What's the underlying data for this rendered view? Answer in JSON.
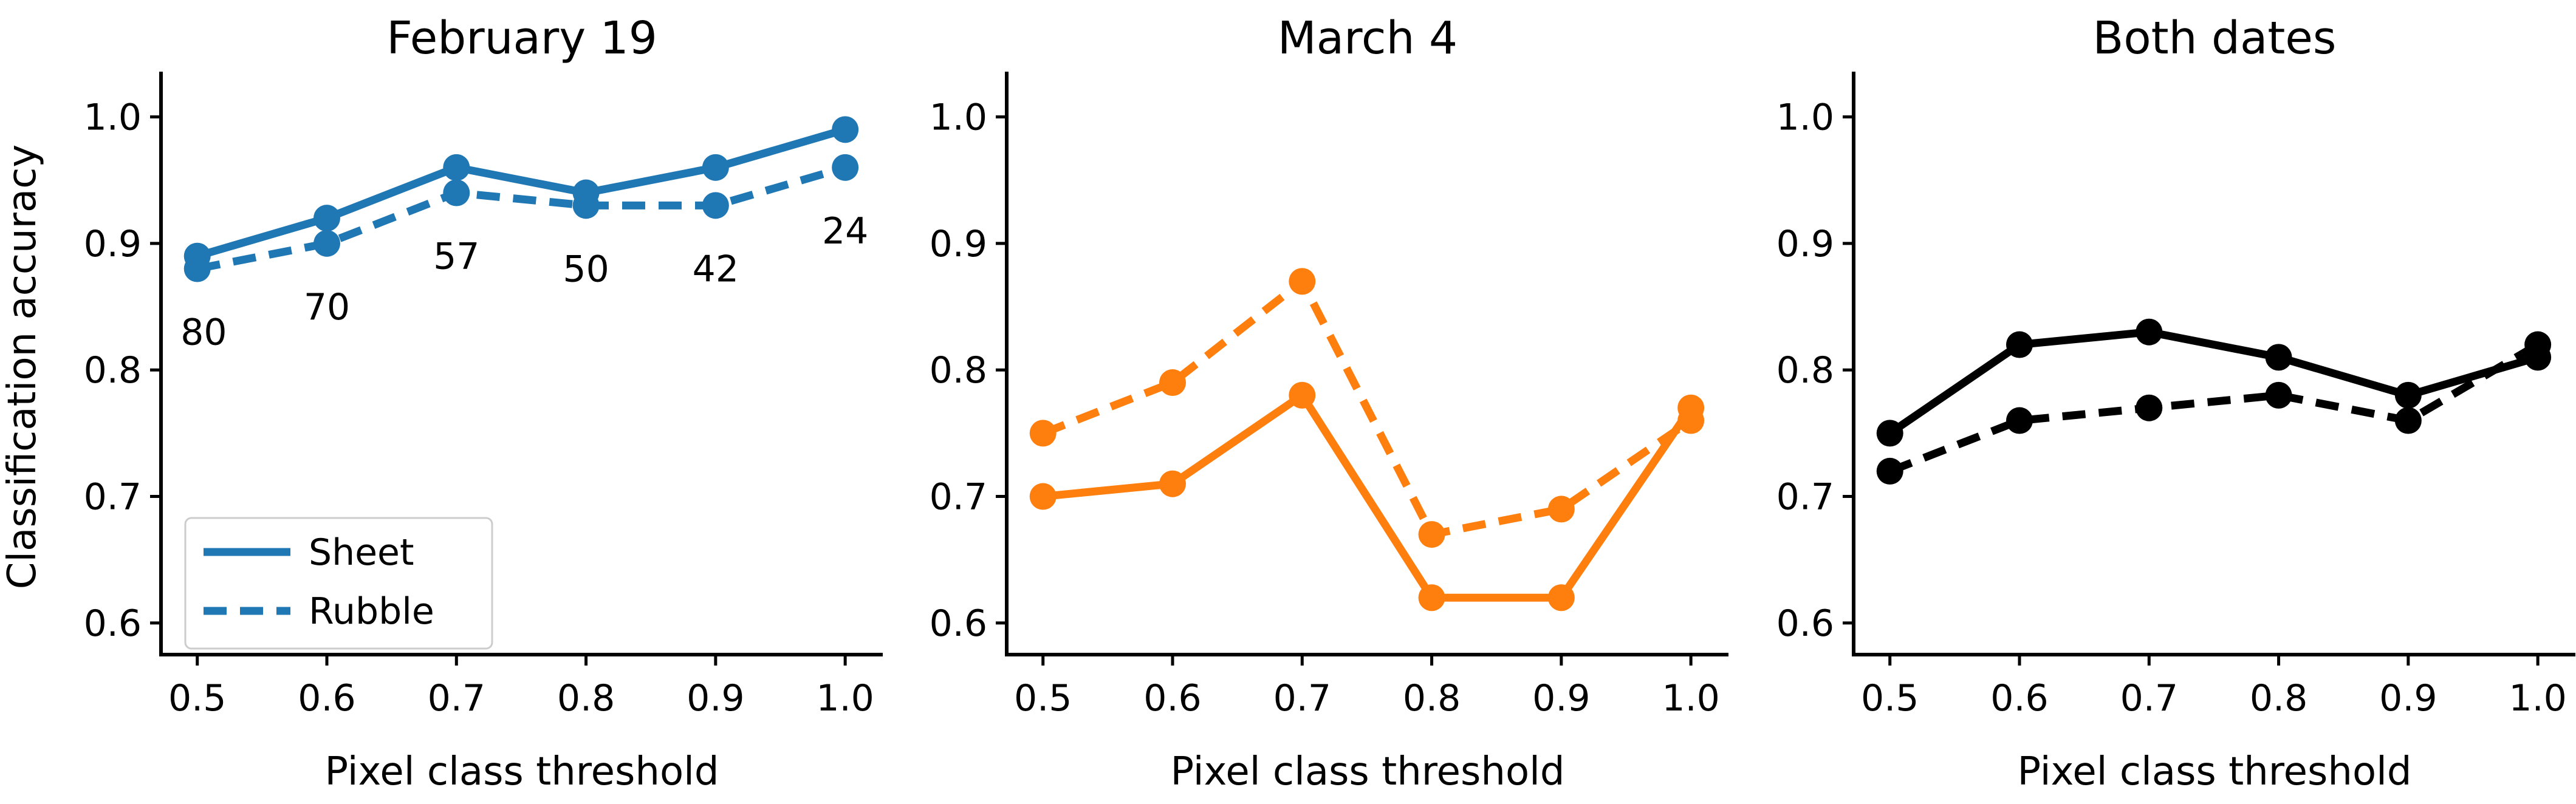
{
  "figure": {
    "background": "#ffffff",
    "xlabel": "Pixel class threshold",
    "ylabel": "Classification accuracy",
    "legend": {
      "entries": [
        "Sheet",
        "Rubble"
      ],
      "position": "lower left"
    }
  },
  "chart_data": [
    {
      "type": "line",
      "title": "February 19",
      "xlabel": "Pixel class threshold",
      "ylabel": "Classification accuracy",
      "x": [
        0.5,
        0.6,
        0.7,
        0.8,
        0.9,
        1.0
      ],
      "series": [
        {
          "name": "Sheet",
          "linestyle": "solid",
          "color": "#1f77b4",
          "values": [
            0.89,
            0.92,
            0.96,
            0.94,
            0.96,
            0.99
          ]
        },
        {
          "name": "Rubble",
          "linestyle": "dashed",
          "color": "#1f77b4",
          "values": [
            0.88,
            0.9,
            0.94,
            0.93,
            0.93,
            0.96
          ]
        }
      ],
      "annotations": [
        {
          "label": "80",
          "x": 0.505,
          "y": 0.83
        },
        {
          "label": "70",
          "x": 0.6,
          "y": 0.85
        },
        {
          "label": "57",
          "x": 0.7,
          "y": 0.89
        },
        {
          "label": "50",
          "x": 0.8,
          "y": 0.88
        },
        {
          "label": "42",
          "x": 0.9,
          "y": 0.88
        },
        {
          "label": "24",
          "x": 1.0,
          "y": 0.91
        }
      ],
      "legend": {
        "visible": true,
        "entries": [
          "Sheet",
          "Rubble"
        ],
        "position": "lower left"
      },
      "xticks": [
        "0.5",
        "0.6",
        "0.7",
        "0.8",
        "0.9",
        "1.0"
      ],
      "yticks": [
        "0.6",
        "0.7",
        "0.8",
        "0.9",
        "1.0"
      ],
      "xlim": [
        0.472,
        1.029
      ],
      "ylim": [
        0.575,
        1.03
      ],
      "grid": false
    },
    {
      "type": "line",
      "title": "March 4",
      "xlabel": "Pixel class threshold",
      "ylabel": "",
      "x": [
        0.5,
        0.6,
        0.7,
        0.8,
        0.9,
        1.0
      ],
      "series": [
        {
          "name": "Sheet",
          "linestyle": "solid",
          "color": "#ff7f0e",
          "values": [
            0.7,
            0.71,
            0.78,
            0.62,
            0.62,
            0.77
          ]
        },
        {
          "name": "Rubble",
          "linestyle": "dashed",
          "color": "#ff7f0e",
          "values": [
            0.75,
            0.79,
            0.87,
            0.67,
            0.69,
            0.76
          ]
        }
      ],
      "annotations": [],
      "legend": {
        "visible": false
      },
      "xticks": [
        "0.5",
        "0.6",
        "0.7",
        "0.8",
        "0.9",
        "1.0"
      ],
      "yticks": [
        "0.6",
        "0.7",
        "0.8",
        "0.9",
        "1.0"
      ],
      "xlim": [
        0.472,
        1.029
      ],
      "ylim": [
        0.575,
        1.03
      ],
      "grid": false
    },
    {
      "type": "line",
      "title": "Both dates",
      "xlabel": "Pixel class threshold",
      "ylabel": "",
      "x": [
        0.5,
        0.6,
        0.7,
        0.8,
        0.9,
        1.0
      ],
      "series": [
        {
          "name": "Sheet",
          "linestyle": "solid",
          "color": "#000000",
          "values": [
            0.75,
            0.82,
            0.83,
            0.81,
            0.78,
            0.81
          ]
        },
        {
          "name": "Rubble",
          "linestyle": "dashed",
          "color": "#000000",
          "values": [
            0.72,
            0.76,
            0.77,
            0.78,
            0.76,
            0.82
          ]
        }
      ],
      "annotations": [],
      "legend": {
        "visible": false
      },
      "xticks": [
        "0.5",
        "0.6",
        "0.7",
        "0.8",
        "0.9",
        "1.0"
      ],
      "yticks": [
        "0.6",
        "0.7",
        "0.8",
        "0.9",
        "1.0"
      ],
      "xlim": [
        0.472,
        1.029
      ],
      "ylim": [
        0.575,
        1.03
      ],
      "grid": false
    }
  ]
}
